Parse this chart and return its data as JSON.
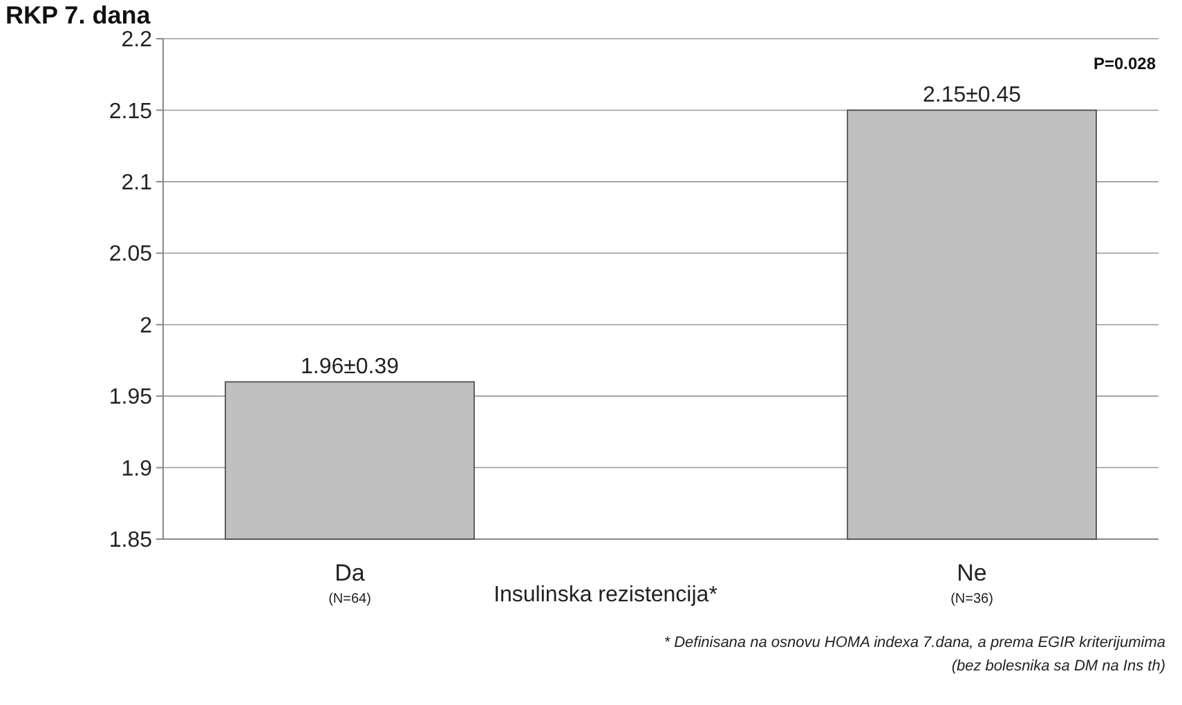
{
  "chart_data": {
    "type": "bar",
    "title": "RKP 7. dana",
    "xlabel": "Insulinska rezistencija*",
    "categories": [
      "Da\n(N=64)",
      "Ne\n(N=36)"
    ],
    "values": [
      1.96,
      2.15
    ],
    "color": "#c0c0c0",
    "value_labels": [
      "1.96±0.39",
      "2.15±0.45"
    ],
    "ylim": [
      1.85,
      2.2
    ],
    "yticks": [
      {
        "value": 1.85,
        "label": "1.85"
      },
      {
        "value": 1.9,
        "label": "1.9"
      },
      {
        "value": 1.95,
        "label": "1.95"
      },
      {
        "value": 2,
        "label": "2"
      },
      {
        "value": 2.05,
        "label": "2.05"
      },
      {
        "value": 2.1,
        "label": "2.1"
      },
      {
        "value": 2.15,
        "label": "2.15"
      },
      {
        "value": 2.2,
        "label": "2.2"
      }
    ],
    "grid": "y",
    "annotations": [
      "P=0.028",
      "* Definisana na osnovu HOMA indexa 7.dana, a prema EGIR kriterijumima",
      "(bez bolesnika sa DM na Ins th)"
    ]
  }
}
